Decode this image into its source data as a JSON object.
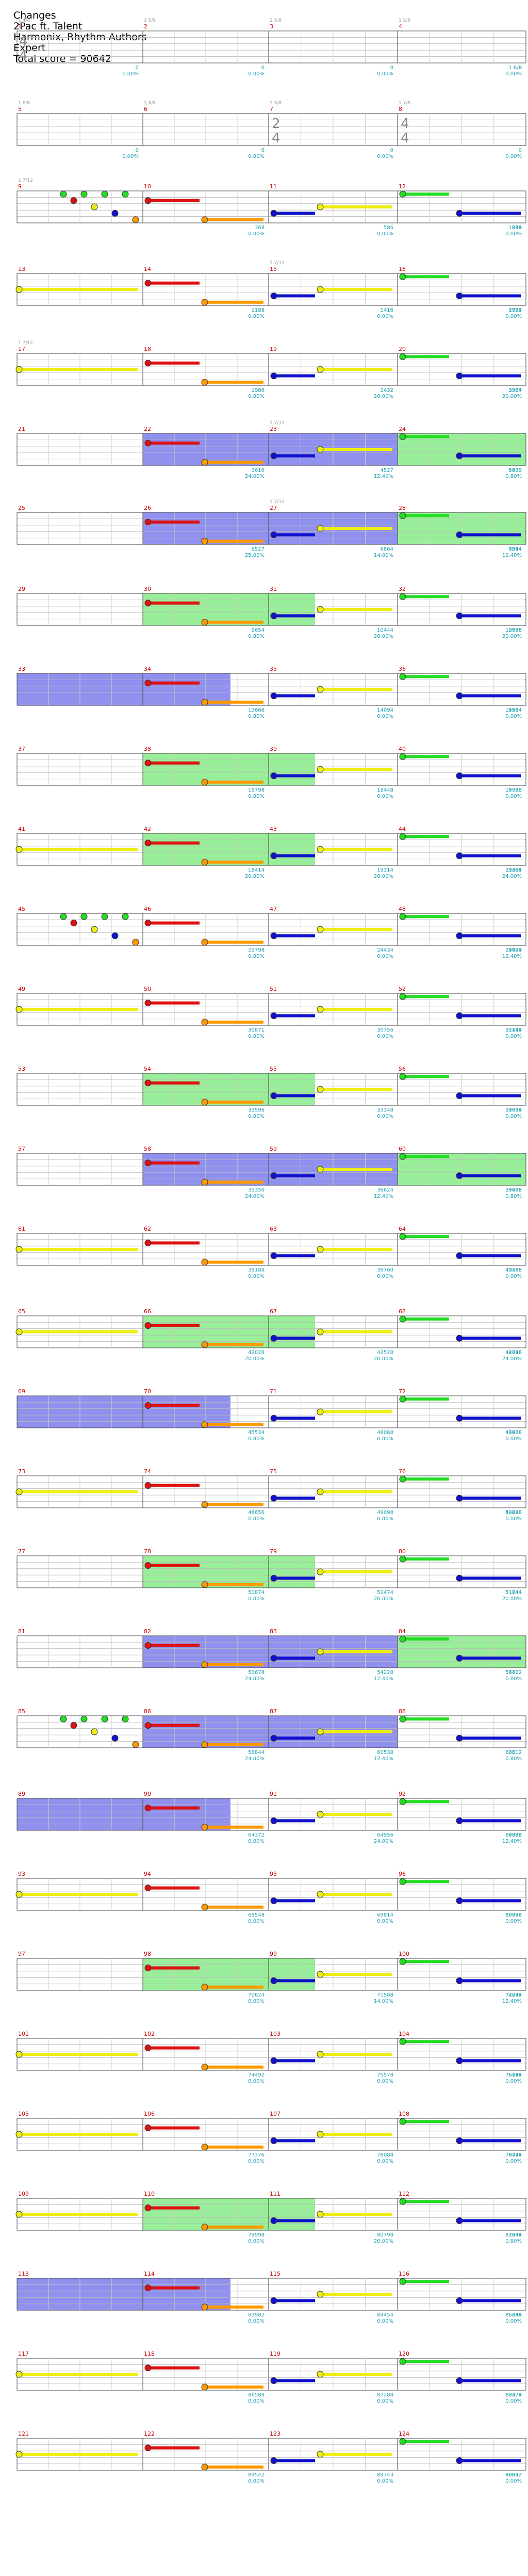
{
  "header": {
    "title": "Changes",
    "artist": "2Pac ft.  Talent",
    "charter": "Harmonix, Rhythm Authors",
    "difficulty": "Expert",
    "total_score_label": "Total score = 90642"
  },
  "time_signatures": [
    {
      "measure": 1,
      "value": "4/4"
    },
    {
      "measure": 7,
      "value": "2/4"
    },
    {
      "measure": 8,
      "value": "4/4"
    }
  ],
  "colors": {
    "green": "#22dd22",
    "red": "#dd1111",
    "yellow": "#eeee11",
    "blue": "#1111cc",
    "orange": "#ff9900",
    "measure_number": "#cc0000",
    "score_text": "#1a9fb0",
    "gray_label": "#999999",
    "overdrive_fill": "#9090ee",
    "solo_fill": "#99ee99"
  },
  "rows": [
    {
      "measures": [
        {
          "num": "1",
          "score": "0",
          "pct": "0.00%",
          "label": "1 4/4"
        },
        {
          "num": "2",
          "score": "0",
          "pct": "0.00%",
          "label": "1 5/8"
        },
        {
          "num": "3",
          "score": "0",
          "pct": "0.00%",
          "label": "1 5/8"
        },
        {
          "num": "4",
          "score": "0",
          "pct": "0.00%",
          "label": "1 5/8"
        }
      ],
      "extra_label": "1 6/8"
    },
    {
      "measures": [
        {
          "num": "5",
          "score": "0",
          "pct": "0.00%",
          "label": "1 6/8"
        },
        {
          "num": "6",
          "score": "0",
          "pct": "0.00%",
          "label": "1 6/8"
        },
        {
          "num": "7",
          "score": "0",
          "pct": "0.00%",
          "label": "1 6/8"
        },
        {
          "num": "8",
          "score": "0",
          "pct": "0.00%",
          "label": "1 7/8"
        }
      ],
      "extra_label": ""
    },
    {
      "measures": [
        {
          "num": "9",
          "score": "",
          "pct": "",
          "label": "1 7/12"
        },
        {
          "num": "10",
          "score": "368",
          "pct": "0.00%",
          "label": ""
        },
        {
          "num": "11",
          "score": "586",
          "pct": "0.00%",
          "label": ""
        },
        {
          "num": "12",
          "score": "916",
          "pct": "0.00%",
          "label": ""
        }
      ],
      "extra_label": "1844"
    },
    {
      "measures": [
        {
          "num": "13",
          "score": "",
          "pct": "",
          "label": ""
        },
        {
          "num": "14",
          "score": "1188",
          "pct": "0.00%",
          "label": ""
        },
        {
          "num": "15",
          "score": "1416",
          "pct": "0.00%",
          "label": "1 7/12"
        },
        {
          "num": "16",
          "score": "1722",
          "pct": "0.00%",
          "label": ""
        }
      ],
      "extra_label": "2064"
    },
    {
      "measures": [
        {
          "num": "17",
          "score": "",
          "pct": "",
          "label": "1 7/12"
        },
        {
          "num": "18",
          "score": "1986",
          "pct": "0.00%",
          "label": ""
        },
        {
          "num": "19",
          "score": "2432",
          "pct": "20.00%",
          "label": ""
        },
        {
          "num": "20",
          "score": "2964",
          "pct": "20.00%",
          "label": ""
        }
      ],
      "extra_label": "3327"
    },
    {
      "measures": [
        {
          "num": "21",
          "score": "",
          "pct": "",
          "label": ""
        },
        {
          "num": "22",
          "score": "3616",
          "pct": "24.00%",
          "label": ""
        },
        {
          "num": "23",
          "score": "4527",
          "pct": "12.40%",
          "label": "1 7/12"
        },
        {
          "num": "24",
          "score": "5439",
          "pct": "0.80%",
          "label": ""
        }
      ],
      "extra_label": "6839"
    },
    {
      "measures": [
        {
          "num": "25",
          "score": "",
          "pct": "",
          "label": ""
        },
        {
          "num": "26",
          "score": "6527",
          "pct": "25.00%",
          "label": ""
        },
        {
          "num": "27",
          "score": "6864",
          "pct": "14.00%",
          "label": "1 7/12"
        },
        {
          "num": "28",
          "score": "7544",
          "pct": "12.40%",
          "label": ""
        }
      ],
      "extra_label": "8864"
    },
    {
      "measures": [
        {
          "num": "29",
          "score": "",
          "pct": "",
          "label": ""
        },
        {
          "num": "30",
          "score": "9654",
          "pct": "0.80%",
          "label": ""
        },
        {
          "num": "31",
          "score": "10444",
          "pct": "20.00%",
          "label": ""
        },
        {
          "num": "32",
          "score": "10635",
          "pct": "20.00%",
          "label": ""
        }
      ],
      "extra_label": "12796"
    },
    {
      "measures": [
        {
          "num": "33",
          "score": "",
          "pct": "",
          "label": ""
        },
        {
          "num": "34",
          "score": "13666",
          "pct": "0.80%",
          "label": ""
        },
        {
          "num": "35",
          "score": "14094",
          "pct": "0.00%",
          "label": ""
        },
        {
          "num": "36",
          "score": "14494",
          "pct": "0.00%",
          "label": ""
        }
      ],
      "extra_label": "15564"
    },
    {
      "measures": [
        {
          "num": "37",
          "score": "",
          "pct": "",
          "label": ""
        },
        {
          "num": "38",
          "score": "15798",
          "pct": "0.00%",
          "label": ""
        },
        {
          "num": "39",
          "score": "16448",
          "pct": "0.00%",
          "label": ""
        },
        {
          "num": "40",
          "score": "16998",
          "pct": "0.00%",
          "label": ""
        }
      ],
      "extra_label": "17988"
    },
    {
      "measures": [
        {
          "num": "41",
          "score": "",
          "pct": "",
          "label": ""
        },
        {
          "num": "42",
          "score": "18414",
          "pct": "20.00%",
          "label": ""
        },
        {
          "num": "43",
          "score": "19314",
          "pct": "20.00%",
          "label": ""
        },
        {
          "num": "44",
          "score": "19484",
          "pct": "24.00%",
          "label": ""
        }
      ],
      "extra_label": "21398"
    },
    {
      "measures": [
        {
          "num": "45",
          "score": "",
          "pct": "",
          "label": ""
        },
        {
          "num": "46",
          "score": "22798",
          "pct": "0.00%",
          "label": ""
        },
        {
          "num": "47",
          "score": "24434",
          "pct": "0.00%",
          "label": ""
        },
        {
          "num": "48",
          "score": "24899",
          "pct": "12.40%",
          "label": ""
        }
      ],
      "extra_label": "29424"
    },
    {
      "measures": [
        {
          "num": "49",
          "score": "",
          "pct": "",
          "label": ""
        },
        {
          "num": "50",
          "score": "30871",
          "pct": "0.00%",
          "label": ""
        },
        {
          "num": "51",
          "score": "30756",
          "pct": "0.00%",
          "label": ""
        },
        {
          "num": "52",
          "score": "31448",
          "pct": "0.00%",
          "label": ""
        }
      ],
      "extra_label": "32134"
    },
    {
      "measures": [
        {
          "num": "53",
          "score": "",
          "pct": "",
          "label": ""
        },
        {
          "num": "54",
          "score": "32596",
          "pct": "0.00%",
          "label": ""
        },
        {
          "num": "55",
          "score": "33348",
          "pct": "0.00%",
          "label": ""
        },
        {
          "num": "56",
          "score": "33654",
          "pct": "0.00%",
          "label": ""
        }
      ],
      "extra_label": "34086"
    },
    {
      "measures": [
        {
          "num": "57",
          "score": "",
          "pct": "",
          "label": ""
        },
        {
          "num": "58",
          "score": "35350",
          "pct": "24.00%",
          "label": ""
        },
        {
          "num": "59",
          "score": "36624",
          "pct": "12.40%",
          "label": ""
        },
        {
          "num": "60",
          "score": "37482",
          "pct": "0.80%",
          "label": ""
        }
      ],
      "extra_label": "39676"
    },
    {
      "measures": [
        {
          "num": "61",
          "score": "",
          "pct": "",
          "label": ""
        },
        {
          "num": "62",
          "score": "39188",
          "pct": "0.00%",
          "label": ""
        },
        {
          "num": "63",
          "score": "39760",
          "pct": "0.00%",
          "label": ""
        },
        {
          "num": "64",
          "score": "40470",
          "pct": "0.00%",
          "label": ""
        }
      ],
      "extra_label": "41168"
    },
    {
      "measures": [
        {
          "num": "65",
          "score": "",
          "pct": "",
          "label": ""
        },
        {
          "num": "66",
          "score": "42028",
          "pct": "20.00%",
          "label": ""
        },
        {
          "num": "67",
          "score": "42528",
          "pct": "20.00%",
          "label": ""
        },
        {
          "num": "68",
          "score": "42798",
          "pct": "24.00%",
          "label": ""
        }
      ],
      "extra_label": "44646"
    },
    {
      "measures": [
        {
          "num": "69",
          "score": "",
          "pct": "",
          "label": ""
        },
        {
          "num": "70",
          "score": "45534",
          "pct": "0.80%",
          "label": ""
        },
        {
          "num": "71",
          "score": "46088",
          "pct": "0.00%",
          "label": ""
        },
        {
          "num": "72",
          "score": "46438",
          "pct": "0.00%",
          "label": ""
        }
      ],
      "extra_label": "47938"
    },
    {
      "measures": [
        {
          "num": "73",
          "score": "",
          "pct": "",
          "label": ""
        },
        {
          "num": "74",
          "score": "48656",
          "pct": "0.00%",
          "label": ""
        },
        {
          "num": "75",
          "score": "49098",
          "pct": "0.00%",
          "label": ""
        },
        {
          "num": "76",
          "score": "49288",
          "pct": "0.00%",
          "label": ""
        }
      ],
      "extra_label": "50698"
    },
    {
      "measures": [
        {
          "num": "77",
          "score": "",
          "pct": "",
          "label": ""
        },
        {
          "num": "78",
          "score": "50874",
          "pct": "0.00%",
          "label": ""
        },
        {
          "num": "79",
          "score": "51474",
          "pct": "20.00%",
          "label": ""
        },
        {
          "num": "80",
          "score": "51744",
          "pct": "20.00%",
          "label": ""
        }
      ],
      "extra_label": "51844"
    },
    {
      "measures": [
        {
          "num": "81",
          "score": "",
          "pct": "",
          "label": ""
        },
        {
          "num": "82",
          "score": "53678",
          "pct": "24.00%",
          "label": ""
        },
        {
          "num": "83",
          "score": "54228",
          "pct": "12.40%",
          "label": ""
        },
        {
          "num": "84",
          "score": "56712",
          "pct": "0.80%",
          "label": ""
        }
      ],
      "extra_label": "57422"
    },
    {
      "measures": [
        {
          "num": "85",
          "score": "",
          "pct": "",
          "label": ""
        },
        {
          "num": "86",
          "score": "58844",
          "pct": "24.00%",
          "label": ""
        },
        {
          "num": "87",
          "score": "60538",
          "pct": "12.40%",
          "label": ""
        },
        {
          "num": "88",
          "score": "60812",
          "pct": "0.80%",
          "label": ""
        }
      ],
      "extra_label": "63512"
    },
    {
      "measures": [
        {
          "num": "89",
          "score": "",
          "pct": "",
          "label": ""
        },
        {
          "num": "90",
          "score": "64372",
          "pct": "0.00%",
          "label": ""
        },
        {
          "num": "91",
          "score": "64956",
          "pct": "24.00%",
          "label": ""
        },
        {
          "num": "92",
          "score": "66328",
          "pct": "12.40%",
          "label": ""
        }
      ],
      "extra_label": "67682"
    },
    {
      "measures": [
        {
          "num": "93",
          "score": "",
          "pct": "",
          "label": ""
        },
        {
          "num": "94",
          "score": "68548",
          "pct": "0.00%",
          "label": ""
        },
        {
          "num": "95",
          "score": "69814",
          "pct": "0.00%",
          "label": ""
        },
        {
          "num": "96",
          "score": "69788",
          "pct": "0.00%",
          "label": ""
        }
      ],
      "extra_label": "70092"
    },
    {
      "measures": [
        {
          "num": "97",
          "score": "",
          "pct": "",
          "label": ""
        },
        {
          "num": "98",
          "score": "70624",
          "pct": "0.00%",
          "label": ""
        },
        {
          "num": "99",
          "score": "71588",
          "pct": "14.00%",
          "label": ""
        },
        {
          "num": "100",
          "score": "72878",
          "pct": "12.40%",
          "label": ""
        }
      ],
      "extra_label": "74244"
    },
    {
      "measures": [
        {
          "num": "101",
          "score": "",
          "pct": "",
          "label": ""
        },
        {
          "num": "102",
          "score": "74492",
          "pct": "0.00%",
          "label": ""
        },
        {
          "num": "103",
          "score": "75578",
          "pct": "0.00%",
          "label": ""
        },
        {
          "num": "104",
          "score": "76168",
          "pct": "0.00%",
          "label": ""
        }
      ],
      "extra_label": "76444"
    },
    {
      "measures": [
        {
          "num": "105",
          "score": "",
          "pct": "",
          "label": ""
        },
        {
          "num": "106",
          "score": "77376",
          "pct": "0.00%",
          "label": ""
        },
        {
          "num": "107",
          "score": "78088",
          "pct": "0.00%",
          "label": ""
        },
        {
          "num": "108",
          "score": "78744",
          "pct": "0.00%",
          "label": ""
        }
      ],
      "extra_label": "79428"
    },
    {
      "measures": [
        {
          "num": "109",
          "score": "",
          "pct": "",
          "label": ""
        },
        {
          "num": "110",
          "score": "79998",
          "pct": "0.00%",
          "label": ""
        },
        {
          "num": "111",
          "score": "80798",
          "pct": "20.00%",
          "label": ""
        },
        {
          "num": "112",
          "score": "81844",
          "pct": "0.80%",
          "label": ""
        }
      ],
      "extra_label": "82948"
    },
    {
      "measures": [
        {
          "num": "113",
          "score": "",
          "pct": "",
          "label": ""
        },
        {
          "num": "114",
          "score": "83982",
          "pct": "0.00%",
          "label": ""
        },
        {
          "num": "115",
          "score": "84454",
          "pct": "0.00%",
          "label": ""
        },
        {
          "num": "116",
          "score": "85144",
          "pct": "0.00%",
          "label": ""
        }
      ],
      "extra_label": "86886"
    },
    {
      "measures": [
        {
          "num": "117",
          "score": "",
          "pct": "",
          "label": ""
        },
        {
          "num": "118",
          "score": "86589",
          "pct": "0.00%",
          "label": ""
        },
        {
          "num": "119",
          "score": "87288",
          "pct": "0.00%",
          "label": ""
        },
        {
          "num": "120",
          "score": "87478",
          "pct": "0.00%",
          "label": ""
        }
      ],
      "extra_label": "88374"
    },
    {
      "measures": [
        {
          "num": "121",
          "score": "",
          "pct": "",
          "label": ""
        },
        {
          "num": "122",
          "score": "89542",
          "pct": "0.00%",
          "label": ""
        },
        {
          "num": "123",
          "score": "89743",
          "pct": "0.00%",
          "label": ""
        },
        {
          "num": "124",
          "score": "89812",
          "pct": "0.00%",
          "label": ""
        }
      ],
      "extra_label": "90642"
    }
  ]
}
